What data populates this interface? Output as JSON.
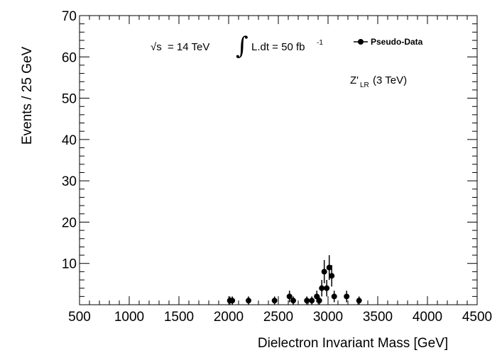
{
  "chart_data": {
    "type": "scatter",
    "xlabel": "Dielectron Invariant Mass [GeV]",
    "ylabel": "Events / 25 GeV",
    "xlim": [
      500,
      4500
    ],
    "ylim": [
      0,
      70
    ],
    "xticks": [
      500,
      1000,
      1500,
      2000,
      2500,
      3000,
      3500,
      4000,
      4500
    ],
    "yticks": [
      10,
      20,
      30,
      40,
      50,
      60,
      70
    ],
    "grid": false,
    "legend": {
      "position": "top-right",
      "entries": [
        "Pseudo-Data"
      ]
    },
    "annotations": {
      "sqrt_s_symbol": "√s",
      "energy": "= 14 TeV",
      "integral_symbol": "∫",
      "lumi_prefix": "L.dt = 50 fb",
      "lumi_superscript": "-1",
      "signal_base": "Z'",
      "signal_subscript": "LR",
      "signal_mass": "(3 TeV)"
    },
    "series": [
      {
        "name": "Pseudo-Data",
        "points": [
          {
            "x": 2012,
            "y": 1,
            "err": 1
          },
          {
            "x": 2037,
            "y": 1,
            "err": 1
          },
          {
            "x": 2200,
            "y": 1,
            "err": 1
          },
          {
            "x": 2462,
            "y": 1,
            "err": 1
          },
          {
            "x": 2612,
            "y": 2,
            "err": 1.4
          },
          {
            "x": 2650,
            "y": 1,
            "err": 1
          },
          {
            "x": 2787,
            "y": 1,
            "err": 1
          },
          {
            "x": 2837,
            "y": 1,
            "err": 1
          },
          {
            "x": 2887,
            "y": 2,
            "err": 1.4
          },
          {
            "x": 2912,
            "y": 1,
            "err": 1
          },
          {
            "x": 2937,
            "y": 4,
            "err": 2
          },
          {
            "x": 2962,
            "y": 8,
            "err": 2.8
          },
          {
            "x": 2987,
            "y": 4,
            "err": 2
          },
          {
            "x": 3012,
            "y": 9,
            "err": 3
          },
          {
            "x": 3037,
            "y": 7,
            "err": 2.6
          },
          {
            "x": 3062,
            "y": 2,
            "err": 1.4
          },
          {
            "x": 3187,
            "y": 2,
            "err": 1.4
          },
          {
            "x": 3312,
            "y": 1,
            "err": 1
          }
        ]
      }
    ]
  }
}
